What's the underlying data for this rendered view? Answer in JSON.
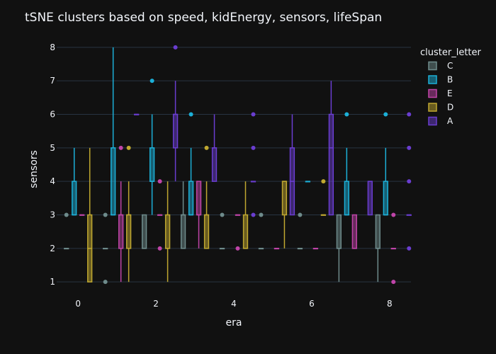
{
  "chart_data": {
    "type": "box",
    "title": "tSNE clusters based on speed, kidEnergy, sensors, lifeSpan",
    "xlabel": "era",
    "ylabel": "sensors",
    "xlim": [
      -0.55,
      8.55
    ],
    "ylim": [
      0.75,
      8.25
    ],
    "x_ticks": [
      0,
      2,
      4,
      6,
      8
    ],
    "y_ticks": [
      1,
      2,
      3,
      4,
      5,
      6,
      7,
      8
    ],
    "grid": true,
    "legend_title": "cluster_letter",
    "legend_position": "right",
    "offsets": [
      -0.3,
      -0.1,
      0.1,
      0.3
    ],
    "series": [
      {
        "name": "C",
        "color": "#6e8b8b",
        "boxes": [
          {
            "x": 0,
            "slot": 0,
            "min": 2,
            "q1": 2,
            "median": 2,
            "q3": 2,
            "max": 2,
            "outliers": [
              3
            ]
          },
          {
            "x": 1,
            "slot": 0,
            "min": 2,
            "q1": 2,
            "median": 2,
            "q3": 2,
            "max": 2,
            "outliers": [
              1,
              3
            ]
          },
          {
            "x": 2,
            "slot": 0,
            "min": 2,
            "q1": 2,
            "median": 2,
            "q3": 3,
            "max": 3,
            "outliers": []
          },
          {
            "x": 3,
            "slot": 0,
            "min": 2,
            "q1": 2,
            "median": 3,
            "q3": 3,
            "max": 4,
            "outliers": []
          },
          {
            "x": 4,
            "slot": 0,
            "min": 2,
            "q1": 2,
            "median": 2,
            "q3": 2,
            "max": 2,
            "outliers": [
              3
            ]
          },
          {
            "x": 5,
            "slot": 0,
            "min": 2,
            "q1": 2,
            "median": 2,
            "q3": 2,
            "max": 2,
            "outliers": [
              3
            ]
          },
          {
            "x": 6,
            "slot": 0,
            "min": 2,
            "q1": 2,
            "median": 2,
            "q3": 2,
            "max": 2,
            "outliers": [
              3
            ]
          },
          {
            "x": 7,
            "slot": 0,
            "min": 1,
            "q1": 2,
            "median": 2,
            "q3": 3,
            "max": 3,
            "outliers": []
          },
          {
            "x": 8,
            "slot": 0,
            "min": 1,
            "q1": 2,
            "median": 2,
            "q3": 3,
            "max": 3,
            "outliers": []
          }
        ]
      },
      {
        "name": "B",
        "color": "#1cb0d8",
        "boxes": [
          {
            "x": 0,
            "slot": 1,
            "min": 3,
            "q1": 3,
            "median": 3,
            "q3": 4,
            "max": 5,
            "outliers": []
          },
          {
            "x": 1,
            "slot": 1,
            "min": 3,
            "q1": 3,
            "median": 3,
            "q3": 5,
            "max": 8,
            "outliers": []
          },
          {
            "x": 2,
            "slot": 1,
            "min": 3,
            "q1": 4,
            "median": 4,
            "q3": 5,
            "max": 6,
            "outliers": [
              7
            ]
          },
          {
            "x": 3,
            "slot": 1,
            "min": 3,
            "q1": 3,
            "median": 3,
            "q3": 4,
            "max": 5,
            "outliers": [
              6
            ]
          },
          {
            "x": 6,
            "slot": 1,
            "min": 4,
            "q1": 4,
            "median": 4,
            "q3": 4,
            "max": 4,
            "outliers": []
          },
          {
            "x": 7,
            "slot": 1,
            "min": 3,
            "q1": 3,
            "median": 3,
            "q3": 4,
            "max": 5,
            "outliers": [
              6
            ]
          },
          {
            "x": 8,
            "slot": 1,
            "min": 3,
            "q1": 3,
            "median": 3,
            "q3": 4,
            "max": 5,
            "outliers": [
              6
            ]
          }
        ]
      },
      {
        "name": "E",
        "color": "#c044a8",
        "boxes": [
          {
            "x": 0,
            "slot": 2,
            "min": 3,
            "q1": 3,
            "median": 3,
            "q3": 3,
            "max": 3,
            "outliers": []
          },
          {
            "x": 1,
            "slot": 2,
            "min": 1,
            "q1": 2,
            "median": 3,
            "q3": 3,
            "max": 4,
            "outliers": [
              5
            ]
          },
          {
            "x": 2,
            "slot": 2,
            "min": 3,
            "q1": 3,
            "median": 3,
            "q3": 3,
            "max": 3,
            "outliers": [
              2,
              4
            ]
          },
          {
            "x": 3,
            "slot": 2,
            "min": 2,
            "q1": 3,
            "median": 3,
            "q3": 4,
            "max": 4,
            "outliers": []
          },
          {
            "x": 4,
            "slot": 2,
            "min": 3,
            "q1": 3,
            "median": 3,
            "q3": 3,
            "max": 3,
            "outliers": [
              2
            ]
          },
          {
            "x": 5,
            "slot": 2,
            "min": 2,
            "q1": 2,
            "median": 2,
            "q3": 2,
            "max": 2,
            "outliers": []
          },
          {
            "x": 6,
            "slot": 2,
            "min": 2,
            "q1": 2,
            "median": 2,
            "q3": 2,
            "max": 2,
            "outliers": []
          },
          {
            "x": 7,
            "slot": 2,
            "min": 2,
            "q1": 2,
            "median": 2,
            "q3": 3,
            "max": 3,
            "outliers": []
          },
          {
            "x": 8,
            "slot": 2,
            "min": 2,
            "q1": 2,
            "median": 2,
            "q3": 2,
            "max": 2,
            "outliers": [
              1,
              3
            ]
          }
        ]
      },
      {
        "name": "D",
        "color": "#c0a830",
        "boxes": [
          {
            "x": 0,
            "slot": 3,
            "min": 1,
            "q1": 1,
            "median": 2,
            "q3": 3,
            "max": 5,
            "outliers": []
          },
          {
            "x": 1,
            "slot": 3,
            "min": 1,
            "q1": 2,
            "median": 3,
            "q3": 3,
            "max": 4,
            "outliers": [
              5
            ]
          },
          {
            "x": 2,
            "slot": 3,
            "min": 1,
            "q1": 2,
            "median": 2,
            "q3": 3,
            "max": 4,
            "outliers": []
          },
          {
            "x": 3,
            "slot": 3,
            "min": 2,
            "q1": 2,
            "median": 3,
            "q3": 3,
            "max": 4,
            "outliers": [
              5
            ]
          },
          {
            "x": 4,
            "slot": 3,
            "min": 2,
            "q1": 2,
            "median": 2,
            "q3": 3,
            "max": 4,
            "outliers": []
          },
          {
            "x": 5,
            "slot": 3,
            "min": 2,
            "q1": 3,
            "median": 4,
            "q3": 4,
            "max": 4,
            "outliers": []
          },
          {
            "x": 6,
            "slot": 3,
            "min": 3,
            "q1": 3,
            "median": 3,
            "q3": 3,
            "max": 3,
            "outliers": [
              4
            ]
          }
        ]
      },
      {
        "name": "A",
        "color": "#6a3dd0",
        "boxes": [
          {
            "x": 1,
            "slot": 4,
            "min": 6,
            "q1": 6,
            "median": 6,
            "q3": 6,
            "max": 6,
            "outliers": []
          },
          {
            "x": 2,
            "slot": 4,
            "min": 4,
            "q1": 5,
            "median": 6,
            "q3": 6,
            "max": 7,
            "outliers": [
              8
            ]
          },
          {
            "x": 3,
            "slot": 4,
            "min": 4,
            "q1": 4,
            "median": 5,
            "q3": 5,
            "max": 6,
            "outliers": []
          },
          {
            "x": 4,
            "slot": 4,
            "min": 4,
            "q1": 4,
            "median": 4,
            "q3": 4,
            "max": 4,
            "outliers": [
              3,
              5,
              6
            ]
          },
          {
            "x": 5,
            "slot": 4,
            "min": 3,
            "q1": 3,
            "median": 4,
            "q3": 5,
            "max": 6,
            "outliers": []
          },
          {
            "x": 6,
            "slot": 4,
            "min": 3,
            "q1": 3,
            "median": 5,
            "q3": 6,
            "max": 7,
            "outliers": []
          },
          {
            "x": 7,
            "slot": 4,
            "min": 3,
            "q1": 3,
            "median": 4,
            "q3": 4,
            "max": 4,
            "outliers": []
          },
          {
            "x": 8,
            "slot": 4,
            "min": 3,
            "q1": 3,
            "median": 3,
            "q3": 3,
            "max": 3,
            "outliers": [
              2,
              4,
              5,
              6
            ]
          }
        ]
      }
    ]
  }
}
